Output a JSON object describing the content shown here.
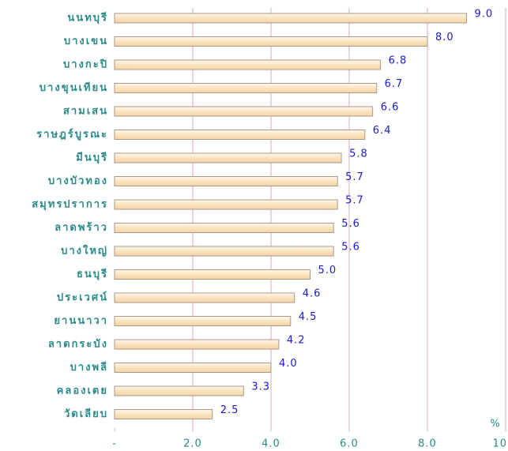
{
  "chart_data": {
    "type": "hbar",
    "x_label": "%",
    "categories": [
      "นนทบุรี",
      "บางเขน",
      "บางกะปิ",
      "บางขุนเทียน",
      "สามเสน",
      "ราษฎร์บูรณะ",
      "มีนบุรี",
      "บางบัวทอง",
      "สมุทรปราการ",
      "ลาดพร้าว",
      "บางใหญ่",
      "ธนบุรี",
      "ประเวศน์",
      "ยานนาวา",
      "ลาดกระบัง",
      "บางพลี",
      "คลองเตย",
      "วัดเลียบ"
    ],
    "values": [
      9.0,
      8.0,
      6.8,
      6.7,
      6.6,
      6.4,
      5.8,
      5.7,
      5.7,
      5.6,
      5.6,
      5.0,
      4.6,
      4.5,
      4.2,
      4.0,
      3.3,
      2.5
    ],
    "value_labels": [
      "9.0",
      "8.0",
      "6.8",
      "6.7",
      "6.6",
      "6.4",
      "5.8",
      "5.7",
      "5.7",
      "5.6",
      "5.6",
      "5.0",
      "4.6",
      "4.5",
      "4.2",
      "4.0",
      "3.3",
      "2.5"
    ],
    "color": "#fbe3c0",
    "xlim": [
      0,
      10
    ],
    "xticks": [
      {
        "value": 0,
        "label": "-"
      },
      {
        "value": 2,
        "label": "2.0"
      },
      {
        "value": 4,
        "label": "4.0"
      },
      {
        "value": 6,
        "label": "6.0"
      },
      {
        "value": 8,
        "label": "8.0"
      },
      {
        "value": 10,
        "label": "10.0"
      }
    ],
    "grid": true
  }
}
